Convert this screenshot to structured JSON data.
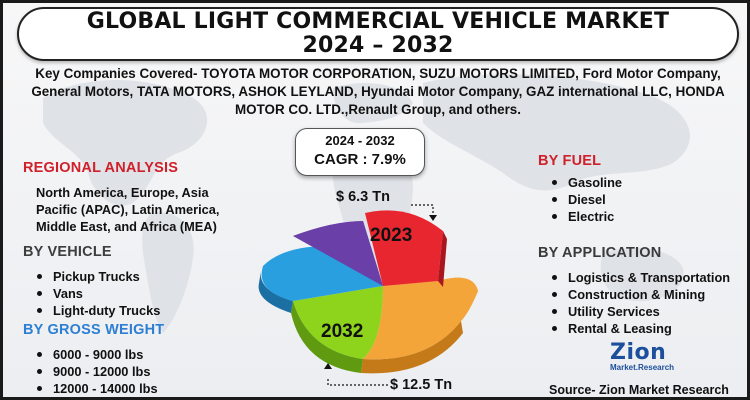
{
  "title": {
    "line1": "GLOBAL LIGHT COMMERCIAL VEHICLE MARKET",
    "line2": "2024 – 2032"
  },
  "companies_text": "Key Companies Covered- TOYOTA MOTOR CORPORATION, SUZU MOTORS LIMITED, Ford Motor Company, General Motors, TATA MOTORS, ASHOK LEYLAND, Hyundai Motor Company, GAZ international LLC, HONDA MOTOR CO. LTD.,Renault Group, and others.",
  "cagr": {
    "period": "2024 - 2032",
    "value": "CAGR : 7.9%"
  },
  "regional": {
    "title": "REGIONAL ANALYSIS",
    "text": "North America, Europe, Asia Pacific (APAC), Latin America, Middle East, and Africa (MEA)"
  },
  "vehicle": {
    "title": "BY VEHICLE",
    "items": [
      "Pickup Trucks",
      "Vans",
      "Light-duty Trucks"
    ]
  },
  "gross_weight": {
    "title": "BY GROSS WEIGHT",
    "items": [
      "6000 - 9000 lbs",
      "9000 - 12000 lbs",
      "12000 - 14000 lbs"
    ]
  },
  "fuel": {
    "title": "BY FUEL",
    "items": [
      "Gasoline",
      "Diesel",
      "Electric"
    ]
  },
  "application": {
    "title": "BY APPLICATION",
    "items": [
      "Logistics & Transportation",
      "Construction & Mining",
      "Utility Services",
      "Rental & Leasing"
    ]
  },
  "pie": {
    "label_2023": "2023",
    "label_2032": "2032",
    "value_2023": "$ 6.3 Tn",
    "value_2032": "$ 12.5 Tn",
    "colors": {
      "red": "#e8262f",
      "orange": "#f4a53a",
      "green": "#8ed31c",
      "blue": "#2a9fe0",
      "purple": "#6a3fa8"
    }
  },
  "logo": {
    "name": "Zion",
    "sub": "Market.Research"
  },
  "source": "Source- Zion Market Research"
}
